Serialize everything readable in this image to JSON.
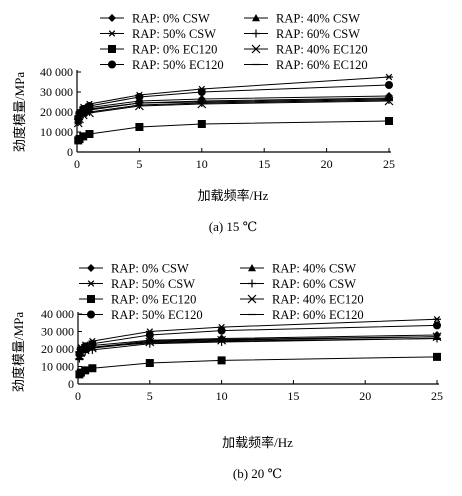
{
  "chart_data": [
    {
      "type": "line",
      "caption": "(a) 15 ℃",
      "xlabel": "加载频率/Hz",
      "ylabel": "劲度模量/MPa",
      "xlim": [
        0,
        25
      ],
      "ylim": [
        0,
        40000
      ],
      "xticks": [
        "0",
        "5",
        "10",
        "15",
        "20",
        "25"
      ],
      "yticks": [
        "0",
        "10 000",
        "20 000",
        "30 000",
        "40 000"
      ],
      "x": [
        0.1,
        0.2,
        0.5,
        1,
        5,
        10,
        25
      ],
      "legend_position": "top",
      "series": [
        {
          "name": "RAP: 0% CSW",
          "marker": "diamond",
          "values": [
            16000,
            18300,
            20500,
            22200,
            25500,
            26500,
            28000
          ]
        },
        {
          "name": "RAP: 40% CSW",
          "marker": "triangle",
          "values": [
            15500,
            17500,
            19500,
            21000,
            24500,
            25500,
            27000
          ]
        },
        {
          "name": "RAP: 50% CSW",
          "marker": "asterisk",
          "values": [
            18000,
            20000,
            22500,
            24000,
            28500,
            31500,
            37500
          ]
        },
        {
          "name": "RAP: 60% CSW",
          "marker": "plus",
          "values": [
            15000,
            17000,
            18800,
            20000,
            23500,
            24500,
            26000
          ]
        },
        {
          "name": "RAP: 0% EC120",
          "marker": "square",
          "values": [
            5800,
            6500,
            7800,
            9000,
            12500,
            14000,
            15500
          ]
        },
        {
          "name": "RAP: 40% EC120",
          "marker": "x",
          "values": [
            14500,
            16500,
            18500,
            19500,
            23000,
            24000,
            25500
          ]
        },
        {
          "name": "RAP: 50% EC120",
          "marker": "circle",
          "values": [
            17000,
            19500,
            21500,
            23000,
            27500,
            30000,
            33500
          ]
        },
        {
          "name": "RAP: 60% EC120",
          "marker": "dash",
          "values": [
            16500,
            18000,
            20000,
            21500,
            24500,
            25000,
            26500
          ]
        }
      ]
    },
    {
      "type": "line",
      "caption": "(b) 20 ℃",
      "xlabel": "加载频率/Hz",
      "ylabel": "劲度模量/MPa",
      "xlim": [
        0,
        25
      ],
      "ylim": [
        0,
        40000
      ],
      "xticks": [
        "0",
        "5",
        "10",
        "15",
        "20",
        "25"
      ],
      "yticks": [
        "0",
        "10 000",
        "20 000",
        "30 000",
        "40 000"
      ],
      "x": [
        0.1,
        0.2,
        0.5,
        1,
        5,
        10,
        25
      ],
      "legend_position": "top",
      "series": [
        {
          "name": "RAP: 0% CSW",
          "marker": "diamond",
          "values": [
            16500,
            18500,
            20500,
            22000,
            25000,
            26000,
            28000
          ]
        },
        {
          "name": "RAP: 40% CSW",
          "marker": "triangle",
          "values": [
            15500,
            17500,
            19500,
            21000,
            24500,
            25500,
            27000
          ]
        },
        {
          "name": "RAP: 50% CSW",
          "marker": "asterisk",
          "values": [
            18500,
            21000,
            22500,
            24500,
            30000,
            32500,
            37000
          ]
        },
        {
          "name": "RAP: 60% CSW",
          "marker": "plus",
          "values": [
            14500,
            16500,
            18500,
            19500,
            23000,
            24000,
            26000
          ]
        },
        {
          "name": "RAP: 0% EC120",
          "marker": "square",
          "values": [
            5500,
            6500,
            7800,
            9000,
            12000,
            13500,
            15500
          ]
        },
        {
          "name": "RAP: 40% EC120",
          "marker": "x",
          "values": [
            16000,
            18000,
            19500,
            20500,
            24000,
            25000,
            27000
          ]
        },
        {
          "name": "RAP: 50% EC120",
          "marker": "circle",
          "values": [
            17000,
            19500,
            21500,
            23000,
            28000,
            30500,
            33500
          ]
        },
        {
          "name": "RAP: 60% EC120",
          "marker": "dash",
          "values": [
            16500,
            18000,
            19500,
            21000,
            23500,
            24500,
            26000
          ]
        }
      ]
    }
  ]
}
